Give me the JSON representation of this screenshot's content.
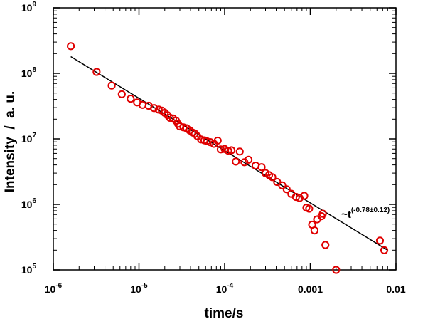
{
  "chart_data": {
    "type": "scatter",
    "xlabel": "time/s",
    "ylabel": "Intensity  /  a. u.",
    "xscale": "log",
    "yscale": "log",
    "xlim": [
      1e-06,
      0.01
    ],
    "ylim": [
      100000.0,
      1000000000.0
    ],
    "x_ticks": [
      {
        "value": 1e-06,
        "base": "10",
        "exp": "-6"
      },
      {
        "value": 1e-05,
        "base": "10",
        "exp": "-5"
      },
      {
        "value": 0.0001,
        "base": "10",
        "exp": "-4"
      },
      {
        "value": 0.001,
        "text": "0.001"
      },
      {
        "value": 0.01,
        "text": "0.01"
      }
    ],
    "y_ticks": [
      {
        "value": 100000.0,
        "base": "10",
        "exp": "5"
      },
      {
        "value": 1000000.0,
        "base": "10",
        "exp": "6"
      },
      {
        "value": 10000000.0,
        "base": "10",
        "exp": "7"
      },
      {
        "value": 100000000.0,
        "base": "10",
        "exp": "8"
      },
      {
        "value": 1000000000.0,
        "base": "10",
        "exp": "9"
      }
    ],
    "grid": false,
    "marker_color": "#e00000",
    "fit_color": "#000000",
    "fit_line": {
      "x": [
        1.6e-06,
        0.008
      ],
      "y": [
        180000000.0,
        200000.0
      ]
    },
    "annotation": {
      "prefix": "~t",
      "exponent": "(-0.78±0.12)",
      "anchor_x": 0.0023,
      "anchor_y": 620000.0
    },
    "series": [
      {
        "x": [
          1.6e-06,
          3.2e-06,
          4.8e-06,
          6.3e-06,
          8e-06,
          9.5e-06,
          1.1e-05,
          1.3e-05,
          1.5e-05,
          1.7e-05,
          1.85e-05,
          2e-05,
          2.15e-05,
          2.3e-05,
          2.5e-05,
          2.7e-05,
          2.85e-05,
          3e-05,
          3.3e-05,
          3.6e-05,
          3.9e-05,
          4.2e-05,
          4.5e-05,
          4.8e-05,
          5.3e-05,
          5.8e-05,
          6.2e-05,
          6.8e-05,
          7.5e-05,
          8.3e-05,
          9e-05,
          0.0001,
          0.00011,
          0.00012,
          0.000135,
          0.00015,
          0.00017,
          0.00019,
          0.00023,
          0.00027,
          0.0003,
          0.00033,
          0.00036,
          0.00041,
          0.00047,
          0.00053,
          0.0006,
          0.00068,
          0.00075,
          0.00085,
          0.0009,
          0.00097,
          0.00105,
          0.00112,
          0.0012,
          0.00135,
          0.0014,
          0.0015,
          0.002,
          0.0065,
          0.0073
        ],
        "y": [
          260000000.0,
          105000000.0,
          65000000.0,
          48000000.0,
          41000000.0,
          36000000.0,
          33000000.0,
          32000000.0,
          29500000.0,
          28000000.0,
          27000000.0,
          25000000.0,
          23000000.0,
          21000000.0,
          20500000.0,
          19000000.0,
          17000000.0,
          15500000.0,
          15000000.0,
          14500000.0,
          13500000.0,
          12500000.0,
          12000000.0,
          11000000.0,
          9800000.0,
          9500000.0,
          9200000.0,
          8900000.0,
          8400000.0,
          9400000.0,
          6900000.0,
          7000000.0,
          6600000.0,
          6700000.0,
          4500000.0,
          6400000.0,
          4400000.0,
          4800000.0,
          3900000.0,
          3700000.0,
          3000000.0,
          2800000.0,
          2600000.0,
          2200000.0,
          1950000.0,
          1700000.0,
          1450000.0,
          1300000.0,
          1250000.0,
          1350000.0,
          890000.0,
          860000.0,
          490000.0,
          400000.0,
          590000.0,
          660000.0,
          720000.0,
          240000.0,
          100000.0,
          280000.0,
          200000.0
        ]
      }
    ]
  }
}
